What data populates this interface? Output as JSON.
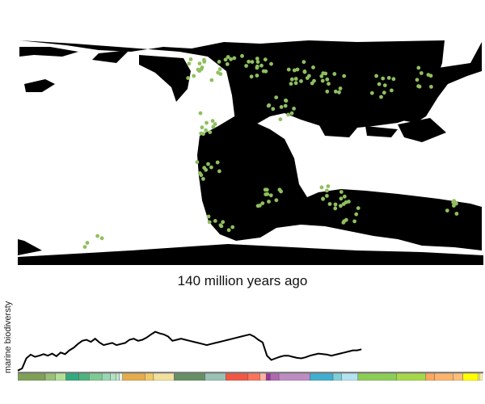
{
  "caption": {
    "age_text": "140 million years ago"
  },
  "y_axis_label": "marine biodiversty",
  "map": {
    "land_color": "#000000",
    "ocean_color": "#ffffff",
    "fossil_site_color": "#8fbf5f",
    "projection": "equirectangular"
  },
  "chart_data": {
    "type": "line",
    "ylabel": "marine biodiversty",
    "x_unit": "millions of years ago",
    "x": [
      540,
      535,
      530,
      525,
      520,
      515,
      510,
      505,
      500,
      495,
      490,
      485,
      480,
      475,
      470,
      465,
      460,
      455,
      450,
      445,
      440,
      435,
      430,
      425,
      420,
      415,
      410,
      405,
      400,
      395,
      390,
      385,
      380,
      375,
      370,
      365,
      360,
      355,
      350,
      345,
      340,
      335,
      330,
      325,
      320,
      315,
      310,
      305,
      300,
      295,
      290,
      285,
      280,
      275,
      270,
      265,
      260,
      255,
      250,
      245,
      240,
      235,
      230,
      225,
      220,
      215,
      210,
      205,
      200,
      195,
      190,
      185,
      180,
      175,
      170,
      165,
      160,
      155,
      150,
      145,
      140
    ],
    "values": [
      2,
      6,
      25,
      32,
      28,
      30,
      33,
      30,
      34,
      29,
      36,
      33,
      40,
      45,
      52,
      58,
      60,
      56,
      62,
      55,
      50,
      52,
      54,
      50,
      52,
      54,
      60,
      62,
      58,
      60,
      64,
      70,
      75,
      72,
      70,
      66,
      58,
      60,
      62,
      60,
      58,
      56,
      54,
      52,
      50,
      52,
      54,
      56,
      58,
      60,
      62,
      64,
      66,
      68,
      70,
      66,
      60,
      55,
      30,
      22,
      25,
      28,
      30,
      30,
      28,
      26,
      25,
      27,
      30,
      32,
      34,
      33,
      32,
      30,
      32,
      34,
      36,
      38,
      40,
      40,
      42
    ],
    "xlim": [
      540,
      0
    ],
    "ylim": [
      0,
      85
    ],
    "line_color": "#000000",
    "geologic_timescale": {
      "unit": "millions of years ago",
      "segments": [
        {
          "start": 541,
          "end": 509,
          "color": "#7fa056"
        },
        {
          "start": 509,
          "end": 497,
          "color": "#99c078"
        },
        {
          "start": 497,
          "end": 485,
          "color": "#b3e095"
        },
        {
          "start": 485,
          "end": 470,
          "color": "#33a97e"
        },
        {
          "start": 470,
          "end": 458,
          "color": "#4db47e"
        },
        {
          "start": 458,
          "end": 443,
          "color": "#7fca93"
        },
        {
          "start": 443,
          "end": 433,
          "color": "#99d7b3"
        },
        {
          "start": 433,
          "end": 427,
          "color": "#b3e1c2"
        },
        {
          "start": 427,
          "end": 423,
          "color": "#bfe6cf"
        },
        {
          "start": 423,
          "end": 419,
          "color": "#e6f5e1"
        },
        {
          "start": 419,
          "end": 393,
          "color": "#e5ac4d"
        },
        {
          "start": 393,
          "end": 383,
          "color": "#f1c868"
        },
        {
          "start": 383,
          "end": 359,
          "color": "#f1e19d"
        },
        {
          "start": 359,
          "end": 323,
          "color": "#678f66"
        },
        {
          "start": 323,
          "end": 299,
          "color": "#99c2b5"
        },
        {
          "start": 299,
          "end": 273,
          "color": "#ef5845"
        },
        {
          "start": 273,
          "end": 259,
          "color": "#fb745c"
        },
        {
          "start": 259,
          "end": 252,
          "color": "#fcb4a2"
        },
        {
          "start": 252,
          "end": 247,
          "color": "#983999"
        },
        {
          "start": 247,
          "end": 237,
          "color": "#b168b1"
        },
        {
          "start": 237,
          "end": 201,
          "color": "#bd8cc3"
        },
        {
          "start": 201,
          "end": 174,
          "color": "#42aed0"
        },
        {
          "start": 174,
          "end": 164,
          "color": "#80cfd8"
        },
        {
          "start": 164,
          "end": 145,
          "color": "#b3e3ee"
        },
        {
          "start": 145,
          "end": 100,
          "color": "#8ccd57"
        },
        {
          "start": 100,
          "end": 66,
          "color": "#a6d84a"
        },
        {
          "start": 66,
          "end": 56,
          "color": "#fda75f"
        },
        {
          "start": 56,
          "end": 34,
          "color": "#fdb46c"
        },
        {
          "start": 34,
          "end": 23,
          "color": "#fdc07a"
        },
        {
          "start": 23,
          "end": 5,
          "color": "#ffff00"
        },
        {
          "start": 5,
          "end": 3,
          "color": "#ffff99"
        },
        {
          "start": 3,
          "end": 0,
          "color": "#fff2ae"
        }
      ]
    }
  }
}
